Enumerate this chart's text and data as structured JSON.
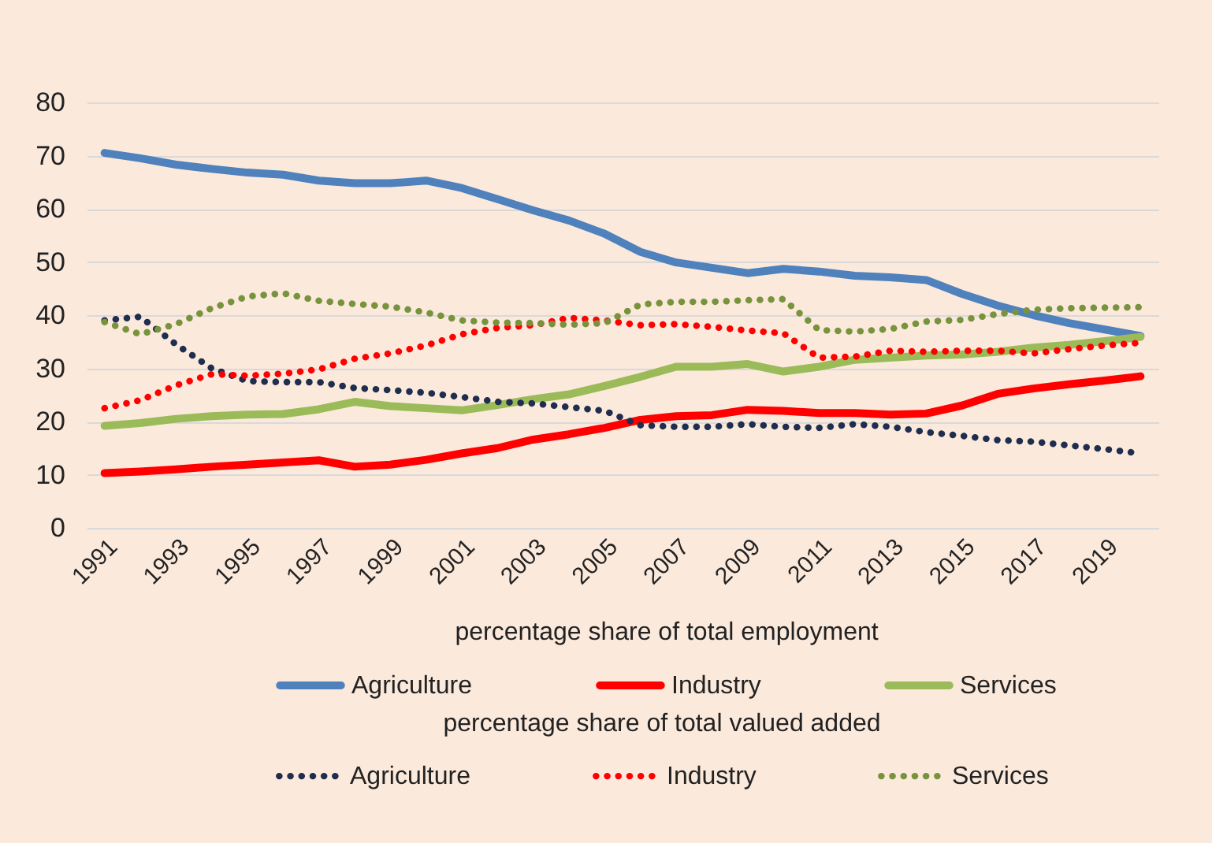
{
  "chart_data": {
    "type": "line",
    "legend_title": [
      "percentage share of total employment",
      "percentage share of total valued added"
    ],
    "categories": [
      "1991",
      null,
      "1993",
      null,
      "1995",
      null,
      "1997",
      null,
      "1999",
      null,
      "2001",
      null,
      "2003",
      null,
      "2005",
      null,
      "2007",
      null,
      "2009",
      null,
      "2011",
      null,
      "2013",
      null,
      "2015",
      null,
      "2017",
      null,
      "2019",
      null
    ],
    "series": [
      {
        "name": "Agriculture",
        "color": "#4f81bd",
        "line_style": "solid",
        "values": [
          70.5,
          69.5,
          68.3,
          67.5,
          66.8,
          66.4,
          65.3,
          64.8,
          64.8,
          65.3,
          63.9,
          61.8,
          59.7,
          57.8,
          55.3,
          51.9,
          49.9,
          48.9,
          47.9,
          48.7,
          48.2,
          47.4,
          47.1,
          46.6,
          44.0,
          41.8,
          40.0,
          38.5,
          37.3,
          36.1
        ]
      },
      {
        "name": "Industry",
        "color": "#ff0000",
        "line_style": "solid",
        "values": [
          10.3,
          10.6,
          11.0,
          11.5,
          11.9,
          12.3,
          12.7,
          11.5,
          11.9,
          12.8,
          14.0,
          15.0,
          16.6,
          17.6,
          18.8,
          20.3,
          21.0,
          21.2,
          22.2,
          22.0,
          21.6,
          21.6,
          21.3,
          21.5,
          23.0,
          25.2,
          26.2,
          27.0,
          27.7,
          28.5
        ]
      },
      {
        "name": "Services",
        "color": "#9bbb59",
        "line_style": "solid",
        "values": [
          19.2,
          19.7,
          20.5,
          21.0,
          21.3,
          21.4,
          22.3,
          23.7,
          22.9,
          22.5,
          22.1,
          23.1,
          24.2,
          25.1,
          26.7,
          28.4,
          30.3,
          30.3,
          30.8,
          29.4,
          30.3,
          31.6,
          32.0,
          32.4,
          32.6,
          33.1,
          33.9,
          34.4,
          35.1,
          35.9
        ]
      },
      {
        "name": "Agriculture",
        "color": "#1f2d4e",
        "line_style": "dotted",
        "values": [
          39.0,
          39.7,
          34.5,
          30.0,
          27.6,
          27.4,
          27.4,
          26.3,
          25.9,
          25.4,
          24.6,
          23.7,
          23.4,
          22.7,
          22.0,
          19.3,
          19.0,
          19.0,
          19.5,
          19.0,
          18.8,
          19.5,
          19.0,
          18.0,
          17.3,
          16.5,
          16.2,
          15.5,
          14.8,
          14.0
        ]
      },
      {
        "name": "Industry",
        "color": "#ff0000",
        "line_style": "dotted",
        "values": [
          22.5,
          24.0,
          26.8,
          28.9,
          28.6,
          29.0,
          29.8,
          31.8,
          32.8,
          34.3,
          36.4,
          37.6,
          38.1,
          39.5,
          39.0,
          38.1,
          38.3,
          37.8,
          37.1,
          36.6,
          32.0,
          32.2,
          33.3,
          33.1,
          33.3,
          33.3,
          32.8,
          33.6,
          34.3,
          34.8
        ]
      },
      {
        "name": "Services",
        "color": "#77933c",
        "line_style": "dotted",
        "values": [
          38.7,
          36.4,
          38.3,
          41.3,
          43.5,
          44.1,
          42.7,
          42.1,
          41.6,
          40.5,
          39.0,
          38.6,
          38.5,
          38.2,
          38.5,
          42.0,
          42.5,
          42.5,
          42.8,
          43.0,
          37.2,
          36.9,
          37.4,
          38.8,
          39.1,
          40.2,
          41.0,
          41.3,
          41.4,
          41.5
        ]
      }
    ],
    "ylim": [
      0,
      80
    ],
    "yticks": [
      0,
      10,
      20,
      30,
      40,
      50,
      60,
      70,
      80
    ],
    "grid": "y",
    "legend": "bottom"
  }
}
